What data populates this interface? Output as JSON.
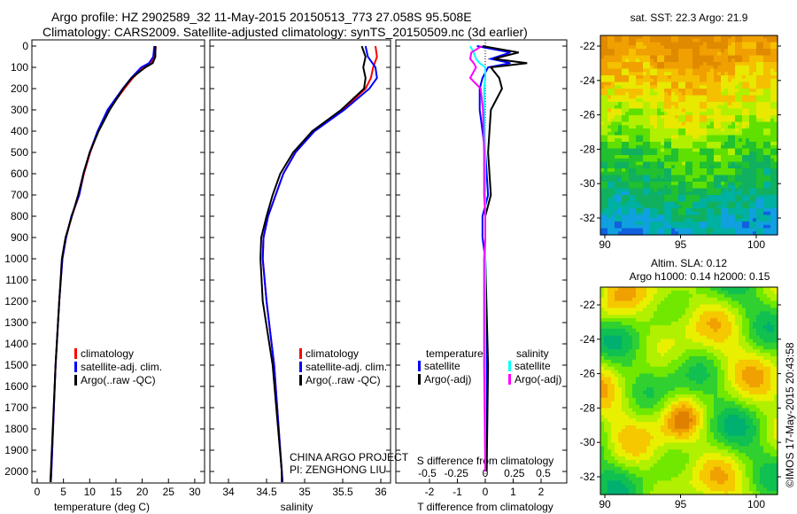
{
  "title": {
    "line1": "Argo profile: HZ 2902589_32 11-May-2015 20150513_773 27.058S 95.508E",
    "line2": "Climatology: CARS2009. Satellite-adjusted climatology: synTS_20150509.nc (3d earlier)"
  },
  "colors": {
    "climatology": "#ff0000",
    "satellite": "#0000ff",
    "argo": "#000000",
    "sal_satellite": "#00ffff",
    "sal_argo": "#ff00ff"
  },
  "chart_data": [
    {
      "type": "line",
      "id": "temperature",
      "xlabel": "temperature (deg C)",
      "ylabel": "",
      "xlim": [
        -1,
        31
      ],
      "ylim": [
        2070,
        -20
      ],
      "xticks": [
        0,
        5,
        10,
        15,
        20,
        25,
        30
      ],
      "yticks": [
        0,
        100,
        200,
        300,
        400,
        500,
        600,
        700,
        800,
        900,
        1000,
        1100,
        1200,
        1300,
        1400,
        1500,
        1600,
        1700,
        1800,
        1900,
        2000
      ],
      "legend": [
        "climatology",
        "satellite-adj. clim.",
        "Argo(..raw -QC)"
      ],
      "depth": [
        0,
        50,
        80,
        100,
        150,
        200,
        300,
        400,
        500,
        600,
        700,
        800,
        900,
        1000,
        1200,
        1500,
        2000,
        2050
      ],
      "series": [
        {
          "name": "climatology",
          "values": [
            22.6,
            22.4,
            21.6,
            20.2,
            18.2,
            16.6,
            13.6,
            11.6,
            10.1,
            8.9,
            8.0,
            6.6,
            5.5,
            4.8,
            4.2,
            3.5,
            2.7,
            2.6
          ]
        },
        {
          "name": "satellite-adj. clim.",
          "values": [
            22.3,
            22.1,
            21.3,
            19.8,
            17.9,
            16.3,
            13.4,
            11.5,
            10.0,
            8.8,
            8.0,
            6.5,
            5.5,
            4.8,
            4.2,
            3.5,
            2.7,
            2.6
          ]
        },
        {
          "name": "Argo(..raw -QC)",
          "values": [
            22.5,
            22.5,
            22.0,
            20.6,
            18.0,
            16.4,
            13.8,
            11.7,
            10.0,
            8.8,
            7.8,
            6.6,
            5.4,
            4.7,
            4.2,
            3.5,
            2.6,
            2.5
          ]
        }
      ]
    },
    {
      "type": "line",
      "id": "salinity",
      "xlabel": "salinity",
      "xlim": [
        33.75,
        36.1
      ],
      "ylim": [
        2070,
        -20
      ],
      "xticks": [
        34,
        34.5,
        35,
        35.5,
        36
      ],
      "legend": [
        "climatology",
        "satellite-adj. clim.",
        "Argo(..raw -QC)"
      ],
      "depth": [
        0,
        50,
        100,
        150,
        200,
        300,
        400,
        500,
        600,
        700,
        800,
        900,
        1000,
        1200,
        1500,
        2000,
        2050
      ],
      "series": [
        {
          "name": "climatology",
          "values": [
            35.93,
            35.95,
            35.9,
            35.87,
            35.8,
            35.5,
            35.12,
            34.88,
            34.72,
            34.62,
            34.52,
            34.46,
            34.45,
            34.5,
            34.6,
            34.7,
            34.71
          ]
        },
        {
          "name": "satellite-adj. clim.",
          "values": [
            35.8,
            35.83,
            35.93,
            35.95,
            35.85,
            35.52,
            35.13,
            34.88,
            34.72,
            34.62,
            34.52,
            34.46,
            34.45,
            34.5,
            34.6,
            34.7,
            34.71
          ]
        },
        {
          "name": "Argo(..raw -QC)",
          "values": [
            35.75,
            35.8,
            35.77,
            35.8,
            35.78,
            35.48,
            35.1,
            34.85,
            34.68,
            34.58,
            34.5,
            34.43,
            34.42,
            34.45,
            34.58,
            34.7,
            34.7
          ]
        }
      ]
    },
    {
      "type": "line",
      "id": "difference",
      "xlabel": "T difference from climatology",
      "x2label": "S difference from climatology",
      "xlim": [
        -3,
        3
      ],
      "xticks": [
        -2,
        -1,
        0,
        1,
        2
      ],
      "x2ticks": [
        -0.5,
        -0.25,
        0,
        0.25,
        0.5
      ],
      "x2ticklabels": [
        "-0.5",
        "-0.25",
        "0",
        "0.25",
        "0.5"
      ],
      "legend_t_title": "temperature",
      "legend_s_title": "salinity",
      "legend_t": [
        "satellite",
        "Argo(-adj)"
      ],
      "legend_s": [
        "satellite",
        "Argo(-adj)"
      ],
      "depth": [
        0,
        30,
        60,
        80,
        100,
        150,
        200,
        300,
        500,
        700,
        800,
        900,
        1000,
        1500,
        2000
      ],
      "series": [
        {
          "name": "T satellite",
          "axis": "T",
          "values": [
            -0.3,
            0.9,
            0.2,
            0.9,
            0.1,
            -0.1,
            -0.2,
            -0.2,
            0,
            0.1,
            -0.1,
            -0.1,
            0,
            0.05,
            0.05
          ]
        },
        {
          "name": "T Argo(-adj)",
          "axis": "T",
          "values": [
            -0.1,
            1.2,
            0.3,
            1.5,
            0.2,
            0.5,
            0.6,
            0.2,
            0.1,
            0.2,
            0,
            0,
            0,
            0.1,
            0.05
          ]
        },
        {
          "name": "S satellite",
          "axis": "S",
          "values": [
            -0.13,
            -0.1,
            -0.08,
            -0.05,
            0,
            0,
            -0.01,
            -0.01,
            0,
            0,
            0,
            0,
            0,
            0,
            0
          ]
        },
        {
          "name": "S Argo(-adj)",
          "axis": "S",
          "values": [
            -0.03,
            -0.12,
            -0.13,
            -0.1,
            -0.08,
            -0.13,
            -0.04,
            -0.02,
            -0.01,
            -0.01,
            0,
            0,
            -0.01,
            -0.01,
            0
          ]
        }
      ]
    },
    {
      "type": "heatmap",
      "id": "sst-map",
      "title": "sat. SST: 22.3 Argo: 21.9",
      "xticks": [
        90,
        95,
        100
      ],
      "yticks": [
        -22,
        -24,
        -26,
        -28,
        -30,
        -32
      ],
      "xlim": [
        89.7,
        101.3
      ],
      "ylim": [
        -33.1,
        -21
      ]
    },
    {
      "type": "heatmap",
      "id": "sla-map",
      "title1": "Altim. SLA: 0.12",
      "title2": "Argo h1000: 0.14 h2000: 0.15",
      "xticks": [
        90,
        95,
        100
      ],
      "yticks": [
        -22,
        -24,
        -26,
        -28,
        -30,
        -32
      ],
      "xlim": [
        89.7,
        101.3
      ],
      "ylim": [
        -33.1,
        -21
      ]
    }
  ],
  "annotation": {
    "project": "CHINA ARGO PROJECT",
    "pi": "PI: ZENGHONG LIU"
  },
  "footer": "©IMOS 17-May-2015 20:43:58"
}
